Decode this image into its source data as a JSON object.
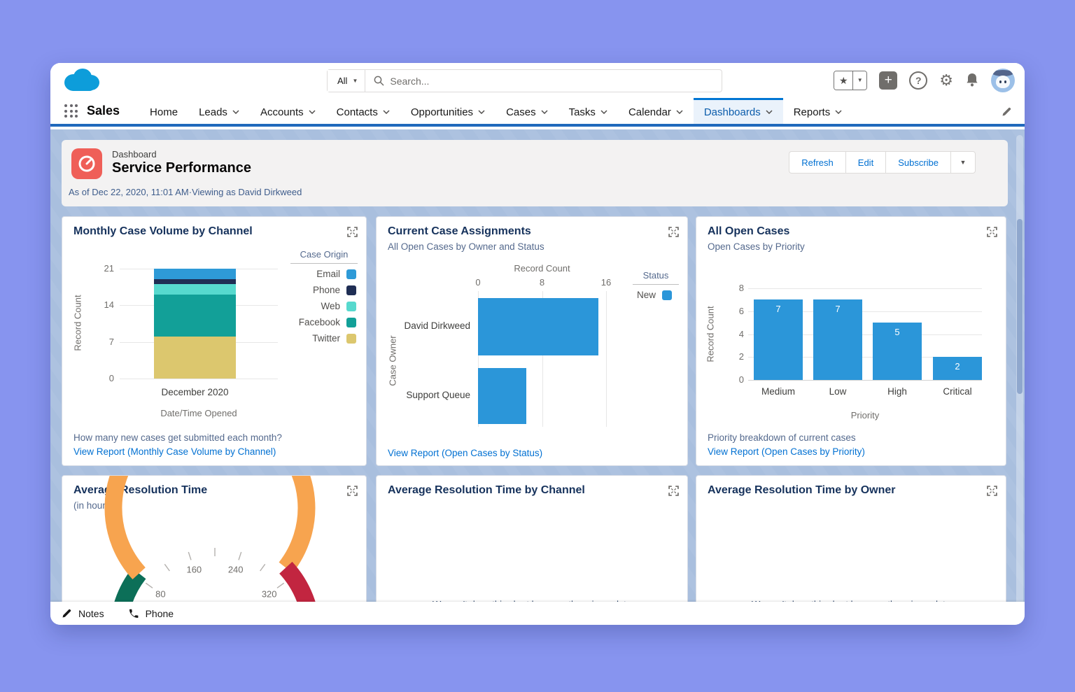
{
  "app": {
    "name": "Sales"
  },
  "topbar": {
    "search_scope": "All",
    "search_placeholder": "Search..."
  },
  "nav": {
    "tabs": [
      {
        "label": "Home",
        "chevron": false,
        "active": false
      },
      {
        "label": "Leads",
        "chevron": true,
        "active": false
      },
      {
        "label": "Accounts",
        "chevron": true,
        "active": false
      },
      {
        "label": "Contacts",
        "chevron": true,
        "active": false
      },
      {
        "label": "Opportunities",
        "chevron": true,
        "active": false
      },
      {
        "label": "Cases",
        "chevron": true,
        "active": false
      },
      {
        "label": "Tasks",
        "chevron": true,
        "active": false
      },
      {
        "label": "Calendar",
        "chevron": true,
        "active": false
      },
      {
        "label": "Dashboards",
        "chevron": true,
        "active": true
      },
      {
        "label": "Reports",
        "chevron": true,
        "active": false
      }
    ]
  },
  "header": {
    "eyebrow": "Dashboard",
    "title": "Service Performance",
    "meta": "As of Dec 22, 2020, 11:01 AM·Viewing as David Dirkweed",
    "actions": [
      "Refresh",
      "Edit",
      "Subscribe"
    ]
  },
  "dock": {
    "items": [
      "Notes",
      "Phone"
    ]
  },
  "chart_data": [
    {
      "id": "monthly-case-volume",
      "type": "bar",
      "stacked": true,
      "title": "Monthly Case Volume by Channel",
      "categories": [
        "December 2020"
      ],
      "series": [
        {
          "name": "Email",
          "values": [
            2
          ],
          "color": "#2e9ad7"
        },
        {
          "name": "Phone",
          "values": [
            1
          ],
          "color": "#1f2e54"
        },
        {
          "name": "Web",
          "values": [
            2
          ],
          "color": "#57d9ce"
        },
        {
          "name": "Facebook",
          "values": [
            8
          ],
          "color": "#12a098"
        },
        {
          "name": "Twitter",
          "values": [
            8
          ],
          "color": "#dcc76e"
        }
      ],
      "ylabel": "Record Count",
      "xlabel": "Date/Time Opened",
      "yticks": [
        21,
        14,
        7,
        0
      ],
      "ylim": [
        0,
        21
      ],
      "legend_title": "Case Origin",
      "legend_position": "right",
      "footer": "How many new cases get submitted each month?",
      "link": "View Report (Monthly Case Volume by Channel)"
    },
    {
      "id": "current-case-assignments",
      "type": "bar-horizontal",
      "title": "Current Case Assignments",
      "subtitle": "All Open Cases by Owner and Status",
      "categories": [
        "David Dirkweed",
        "Support Queue"
      ],
      "series": [
        {
          "name": "New",
          "values": [
            15,
            6
          ],
          "color": "#2b96d9"
        }
      ],
      "xlabel_top": "Record Count",
      "ylabel": "Case Owner",
      "xticks": [
        0,
        8,
        16
      ],
      "xlim": [
        0,
        16
      ],
      "legend_title": "Status",
      "link": "View Report (Open Cases by Status)"
    },
    {
      "id": "all-open-cases",
      "type": "bar",
      "title": "All Open Cases",
      "subtitle": "Open Cases by Priority",
      "categories": [
        "Medium",
        "Low",
        "High",
        "Critical"
      ],
      "values": [
        7,
        7,
        5,
        2
      ],
      "bar_color": "#2b96d9",
      "yticks": [
        8,
        6,
        4,
        2,
        0
      ],
      "ylim": [
        0,
        8
      ],
      "ylabel": "Record Count",
      "xlabel": "Priority",
      "footer": "Priority breakdown of current cases",
      "link": "View Report (Open Cases by Priority)"
    },
    {
      "id": "avg-resolution-time",
      "type": "gauge",
      "title": "Average Resolution Time",
      "subtitle": "(in hours)",
      "min": 0,
      "max": 400,
      "tick_labels": [
        80,
        160,
        240,
        320
      ],
      "minor_ticks": [
        40,
        80,
        120,
        160,
        200,
        240,
        280,
        320,
        360
      ],
      "segments": [
        {
          "from": 0,
          "to": 85,
          "color": "#0c6f58"
        },
        {
          "from": 85,
          "to": 305,
          "color": "#f7a44f"
        },
        {
          "from": 305,
          "to": 400,
          "color": "#c22540"
        }
      ]
    },
    {
      "id": "avg-resolution-by-channel",
      "type": "empty",
      "title": "Average Resolution Time by Channel",
      "empty_message": "We can't draw this chart because there is no data"
    },
    {
      "id": "avg-resolution-by-owner",
      "type": "empty",
      "title": "Average Resolution Time by Owner",
      "empty_message": "We can't draw this chart because there is no data"
    }
  ]
}
